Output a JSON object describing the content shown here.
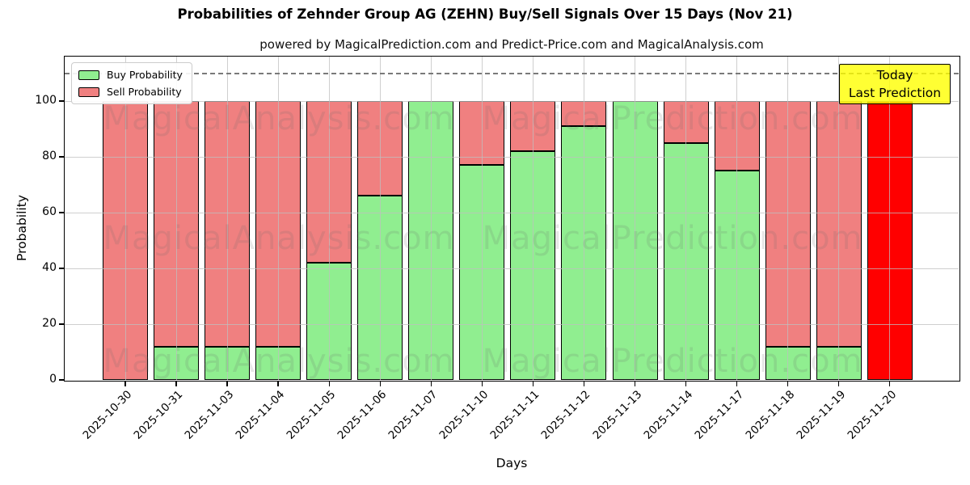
{
  "figure": {
    "title": "Probabilities of Zehnder Group AG (ZEHN) Buy/Sell Signals Over 15 Days (Nov 21)",
    "subtitle": "powered by MagicalPrediction.com and Predict-Price.com and MagicalAnalysis.com"
  },
  "legend": {
    "items": [
      {
        "label": "Buy Probability",
        "color": "#90ee90"
      },
      {
        "label": "Sell Probability",
        "color": "#f08080"
      }
    ]
  },
  "annotation": {
    "lines": [
      "Today",
      "Last Prediction"
    ],
    "bg_color": "rgba(255,255,0,0.8)"
  },
  "watermarks": {
    "left_text": "MagicalAnalysis.com",
    "right_text": "MagicalPrediction.com",
    "color": "rgba(105,105,105,0.16)"
  },
  "colors": {
    "buy": "#90ee90",
    "sell": "#f08080",
    "today": "#ff0000",
    "grid": "#bfbfbf",
    "dashed_line": "#7a7a7a",
    "bar_edge": "#000000"
  },
  "chart_data": {
    "type": "bar",
    "stacked": true,
    "title": "Probabilities of Zehnder Group AG (ZEHN) Buy/Sell Signals Over 15 Days (Nov 21)",
    "xlabel": "Days",
    "ylabel": "Probability",
    "categories": [
      "2025-10-30",
      "2025-10-31",
      "2025-11-03",
      "2025-11-04",
      "2025-11-05",
      "2025-11-06",
      "2025-11-07",
      "2025-11-10",
      "2025-11-11",
      "2025-11-12",
      "2025-11-13",
      "2025-11-14",
      "2025-11-17",
      "2025-11-18",
      "2025-11-19",
      "2025-11-20"
    ],
    "series": [
      {
        "name": "Buy Probability",
        "color": "#90ee90",
        "values": [
          0,
          12,
          12,
          12,
          42,
          66,
          100,
          77,
          82,
          91,
          100,
          85,
          75,
          12,
          12,
          0
        ]
      },
      {
        "name": "Sell Probability",
        "color": "#f08080",
        "values": [
          100,
          88,
          88,
          88,
          58,
          34,
          0,
          23,
          18,
          9,
          0,
          15,
          25,
          88,
          88,
          100
        ]
      }
    ],
    "today_bar": {
      "category": "2025-11-20",
      "color": "#ff0000",
      "annotation": "Today Last Prediction"
    },
    "yticks": [
      0,
      20,
      40,
      60,
      80,
      100
    ],
    "ylim": [
      0,
      116
    ],
    "dashed_line_y": 110,
    "grid": true,
    "legend_position": "upper left"
  }
}
